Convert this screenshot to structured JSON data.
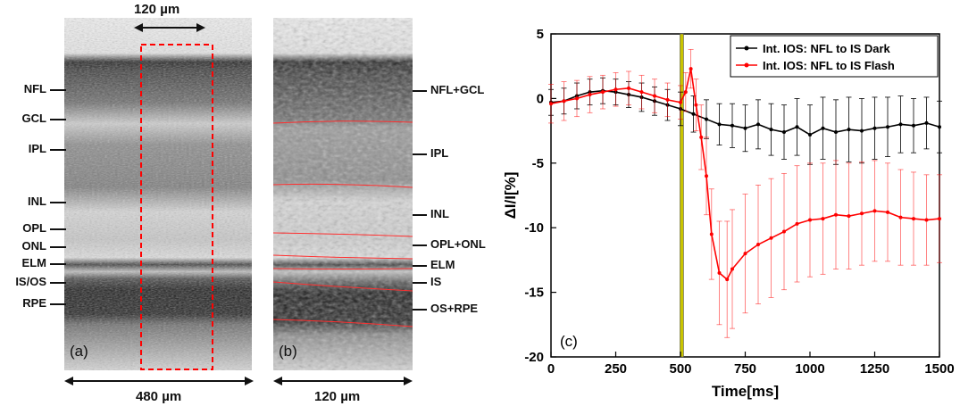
{
  "panel_a": {
    "tag": "(a)",
    "top_scale": "120 µm",
    "bottom_scale": "480 µm",
    "layers": [
      "NFL",
      "GCL",
      "IPL",
      "INL",
      "OPL",
      "ONL",
      "ELM",
      "IS/OS",
      "RPE"
    ]
  },
  "panel_b": {
    "tag": "(b)",
    "bottom_scale": "120 µm",
    "layers": [
      "NFL+GCL",
      "IPL",
      "INL",
      "OPL+ONL",
      "ELM",
      "IS",
      "OS+RPE"
    ]
  },
  "colors": {
    "dark_series": "#000000",
    "flash_series": "#ff0000",
    "stim_marker": "#c8c400",
    "roi_box": "#ff0000"
  },
  "chart_data": {
    "type": "line",
    "panel_tag": "(c)",
    "xlabel": "Time[ms]",
    "ylabel": "ΔI/I[%]",
    "xlim": [
      0,
      1500
    ],
    "ylim": [
      -20,
      5
    ],
    "xticks": [
      0,
      250,
      500,
      750,
      1000,
      1250,
      1500
    ],
    "yticks": [
      5,
      0,
      -5,
      -10,
      -15,
      -20
    ],
    "stimulus_ms": 505,
    "legend_position": "top-right",
    "series": [
      {
        "name": "Int. IOS: NFL to IS Dark",
        "color": "#000000",
        "x": [
          0,
          50,
          100,
          150,
          200,
          250,
          300,
          350,
          400,
          450,
          500,
          550,
          600,
          650,
          700,
          750,
          800,
          850,
          900,
          950,
          1000,
          1050,
          1100,
          1150,
          1200,
          1250,
          1300,
          1350,
          1400,
          1450,
          1500
        ],
        "y": [
          -0.3,
          -0.2,
          0.2,
          0.5,
          0.6,
          0.5,
          0.3,
          0.1,
          -0.2,
          -0.5,
          -0.8,
          -1.2,
          -1.6,
          -2.0,
          -2.1,
          -2.3,
          -2.0,
          -2.4,
          -2.6,
          -2.2,
          -2.8,
          -2.3,
          -2.6,
          -2.4,
          -2.5,
          -2.3,
          -2.2,
          -2.0,
          -2.1,
          -1.9,
          -2.2
        ],
        "error": [
          1.0,
          1.0,
          1.0,
          1.0,
          1.0,
          1.0,
          1.0,
          1.1,
          1.1,
          1.2,
          1.3,
          1.4,
          1.5,
          1.6,
          1.7,
          1.8,
          1.9,
          2.0,
          2.1,
          2.2,
          2.3,
          2.4,
          2.5,
          2.5,
          2.5,
          2.4,
          2.3,
          2.2,
          2.1,
          2.0,
          2.0
        ]
      },
      {
        "name": "Int. IOS: NFL to IS Flash",
        "color": "#ff0000",
        "x": [
          0,
          50,
          100,
          150,
          200,
          250,
          300,
          350,
          400,
          450,
          500,
          520,
          540,
          560,
          580,
          600,
          620,
          650,
          680,
          700,
          750,
          800,
          850,
          900,
          950,
          1000,
          1050,
          1100,
          1150,
          1200,
          1250,
          1300,
          1350,
          1400,
          1450,
          1500
        ],
        "y": [
          -0.4,
          -0.2,
          0.0,
          0.3,
          0.5,
          0.7,
          0.8,
          0.5,
          0.2,
          -0.1,
          -0.3,
          0.5,
          2.3,
          -0.5,
          -3.0,
          -6.0,
          -10.5,
          -13.5,
          -14.0,
          -13.2,
          -12.0,
          -11.3,
          -10.8,
          -10.3,
          -9.7,
          -9.4,
          -9.3,
          -9.0,
          -9.1,
          -8.9,
          -8.7,
          -8.8,
          -9.2,
          -9.3,
          -9.4,
          -9.3
        ],
        "error": [
          1.5,
          1.5,
          1.4,
          1.4,
          1.3,
          1.3,
          1.3,
          1.3,
          1.3,
          1.3,
          1.3,
          1.5,
          1.5,
          2.0,
          2.5,
          3.0,
          3.5,
          4.0,
          4.5,
          4.6,
          4.6,
          4.6,
          4.6,
          4.5,
          4.5,
          4.4,
          4.3,
          4.2,
          4.1,
          4.0,
          3.9,
          3.8,
          3.7,
          3.6,
          3.5,
          3.4
        ]
      }
    ]
  }
}
